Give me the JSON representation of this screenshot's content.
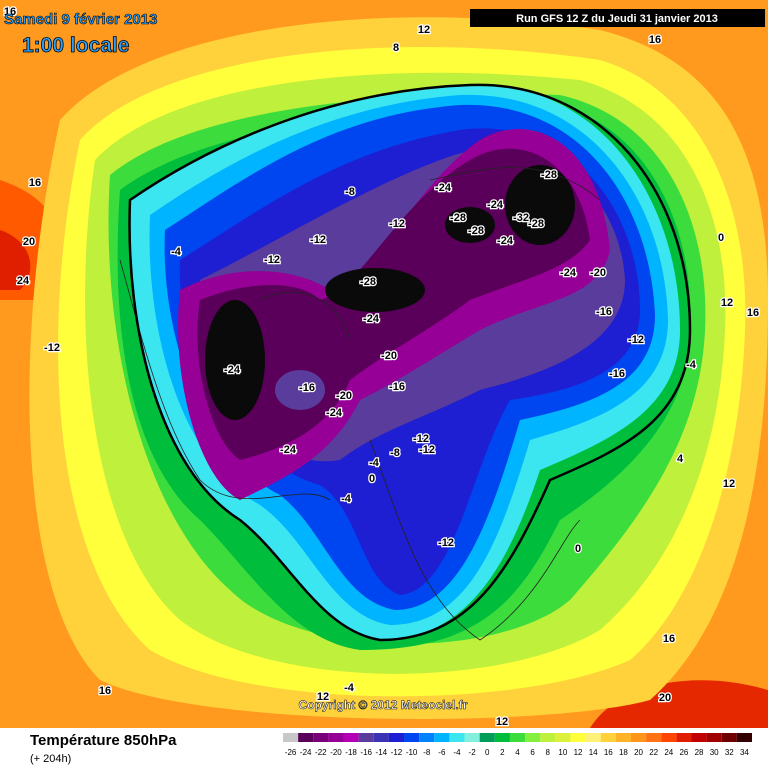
{
  "header": {
    "date": "Samedi 9 février 2013",
    "time": "1:00 locale",
    "run": "Run GFS 12 Z du Jeudi 31 janvier 2013"
  },
  "footer": {
    "title": "Température 850hPa",
    "lead": "(+ 204h)",
    "copyright": "Copyright © 2012 Meteociel.fr"
  },
  "legend": {
    "ticks": [
      -26,
      -24,
      -22,
      -20,
      -18,
      -16,
      -14,
      -12,
      -10,
      -8,
      -6,
      -4,
      -2,
      0,
      2,
      4,
      6,
      8,
      10,
      12,
      14,
      16,
      18,
      20,
      22,
      24,
      26,
      28,
      30,
      32,
      34
    ],
    "colors": [
      "#c8c8c8",
      "#5a005a",
      "#780078",
      "#960096",
      "#b400b4",
      "#5a3c9c",
      "#3c32b4",
      "#1e1ed2",
      "#0046f0",
      "#0082ff",
      "#00b4ff",
      "#3ce6f0",
      "#82f0dc",
      "#009e5a",
      "#00be3c",
      "#3cdc3c",
      "#82f03c",
      "#bef03c",
      "#dcf03c",
      "#ffff3c",
      "#fff078",
      "#ffd23c",
      "#ffb428",
      "#ff9619",
      "#ff7314",
      "#ff4600",
      "#e11e00",
      "#c30000",
      "#a00000",
      "#700000",
      "#320000"
    ]
  },
  "contour_labels": [
    16,
    8,
    12,
    16,
    16,
    20,
    24,
    -8,
    -12,
    -12,
    -12,
    -4,
    -28,
    -24,
    -24,
    -28,
    -28,
    -24,
    -32,
    -28,
    -28,
    -24,
    -24,
    -20,
    -16,
    -12,
    -16,
    -4,
    0,
    12,
    16,
    -12,
    -20,
    -16,
    -24,
    -16,
    -20,
    -24,
    -24,
    -12,
    -12,
    -8,
    -4,
    0,
    -4,
    -12,
    0,
    4,
    12,
    16,
    20,
    16,
    12,
    -4,
    12
  ]
}
